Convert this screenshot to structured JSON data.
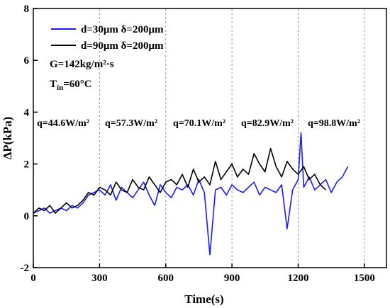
{
  "chart_data": {
    "type": "line",
    "xlabel": "Time(s)",
    "ylabel": "ΔP(kPa)",
    "xlim": [
      0,
      1600
    ],
    "ylim": [
      -2,
      8
    ],
    "xticks": [
      "0",
      "300",
      "600",
      "900",
      "1200",
      "1500"
    ],
    "yticks": [
      "-2",
      "0",
      "2",
      "4",
      "6",
      "8"
    ],
    "grid": "vertical dashed lines at stage boundaries",
    "legend_position": "top-left",
    "series": [
      {
        "name": "d=30μm δ=200μm",
        "color": "#1a1aff",
        "x": [
          0,
          25,
          50,
          75,
          100,
          125,
          150,
          175,
          200,
          225,
          250,
          275,
          300,
          325,
          350,
          375,
          400,
          425,
          450,
          475,
          500,
          525,
          550,
          575,
          600,
          625,
          650,
          675,
          700,
          725,
          750,
          775,
          800,
          825,
          850,
          875,
          900,
          925,
          950,
          975,
          1000,
          1025,
          1050,
          1075,
          1100,
          1125,
          1150,
          1175,
          1200,
          1213,
          1225,
          1250,
          1275,
          1300,
          1325,
          1350,
          1375,
          1400,
          1425
        ],
        "values": [
          0.1,
          0.2,
          0.3,
          0.1,
          0.2,
          0.3,
          0.2,
          0.4,
          0.3,
          0.5,
          0.8,
          0.9,
          1.0,
          0.8,
          1.2,
          0.6,
          1.1,
          0.9,
          0.7,
          1.0,
          1.3,
          0.8,
          0.4,
          1.2,
          0.9,
          0.7,
          1.1,
          1.0,
          1.2,
          0.8,
          1.4,
          0.9,
          -1.5,
          1.0,
          1.1,
          0.8,
          1.2,
          1.0,
          0.9,
          1.1,
          1.3,
          0.8,
          1.1,
          1.0,
          0.9,
          1.2,
          -0.5,
          1.0,
          1.4,
          3.2,
          1.1,
          1.5,
          1.0,
          1.2,
          1.4,
          0.9,
          1.3,
          1.5,
          1.9
        ]
      },
      {
        "name": "d=90μm δ=200μm",
        "color": "#000000",
        "x": [
          0,
          25,
          50,
          75,
          100,
          125,
          150,
          175,
          200,
          225,
          250,
          275,
          300,
          325,
          350,
          375,
          400,
          425,
          450,
          475,
          500,
          525,
          550,
          575,
          600,
          625,
          650,
          675,
          700,
          725,
          750,
          775,
          800,
          825,
          850,
          875,
          900,
          925,
          950,
          975,
          1000,
          1025,
          1050,
          1075,
          1100,
          1125,
          1150,
          1175,
          1200,
          1225,
          1250,
          1275,
          1300,
          1325
        ],
        "values": [
          0.1,
          0.3,
          0.2,
          0.4,
          0.1,
          0.3,
          0.5,
          0.3,
          0.4,
          0.6,
          0.9,
          0.8,
          1.1,
          1.0,
          0.8,
          1.3,
          1.0,
          0.9,
          1.4,
          1.1,
          1.0,
          1.5,
          1.2,
          0.9,
          1.3,
          1.4,
          1.2,
          1.6,
          1.1,
          1.8,
          1.3,
          1.5,
          1.2,
          2.1,
          1.4,
          1.7,
          2.0,
          1.5,
          1.8,
          1.6,
          2.4,
          2.0,
          1.7,
          2.6,
          1.9,
          1.5,
          2.1,
          1.8,
          1.6,
          1.9,
          1.4,
          1.6,
          1.2,
          1.0
        ]
      }
    ],
    "annotations": {
      "g": "G=142kg/m²·s",
      "tin": "T",
      "tin_sub": "in",
      "tin_rest": "=60°C"
    },
    "stages": [
      {
        "label": "q=44.6W/m²",
        "boundary": 300
      },
      {
        "label": "q=57.3W/m²",
        "boundary": 600
      },
      {
        "label": "q=70.1W/m²",
        "boundary": 900
      },
      {
        "label": "q=82.9W/m²",
        "boundary": 1200
      },
      {
        "label": "q=98.8W/m²",
        "boundary": 1500
      }
    ]
  }
}
